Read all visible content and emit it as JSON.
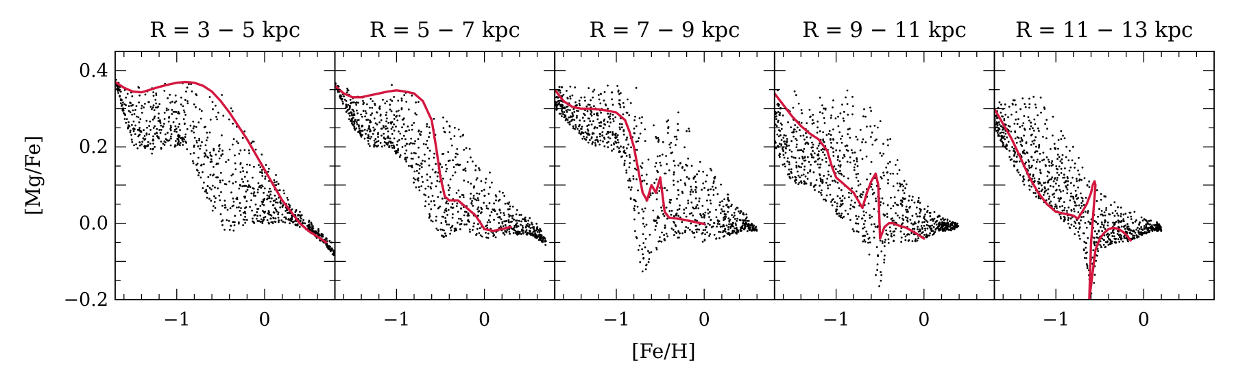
{
  "chart_data": {
    "type": "scatter",
    "xlabel": "[Fe/H]",
    "ylabel": "[Mg/Fe]",
    "xlim": [
      -1.7,
      0.8
    ],
    "ylim": [
      -0.2,
      0.45
    ],
    "x_ticks": [
      -1,
      0
    ],
    "x_tick_labels": [
      "−1",
      "0"
    ],
    "y_ticks": [
      -0.2,
      0.0,
      0.2,
      0.4
    ],
    "y_tick_labels": [
      "−0.2",
      "0.0",
      "0.2",
      "0.4"
    ],
    "panels": [
      {
        "title": "R = 3 − 5 kpc",
        "median_color": "#d3173f",
        "median_line": {
          "x": [
            -1.7,
            -1.6,
            -1.5,
            -1.4,
            -1.3,
            -1.2,
            -1.1,
            -1.0,
            -0.9,
            -0.8,
            -0.7,
            -0.6,
            -0.5,
            -0.4,
            -0.3,
            -0.2,
            -0.1,
            0.0,
            0.1,
            0.2,
            0.3,
            0.4,
            0.5,
            0.6,
            0.7
          ],
          "y": [
            0.37,
            0.355,
            0.345,
            0.343,
            0.35,
            0.357,
            0.363,
            0.368,
            0.37,
            0.368,
            0.36,
            0.345,
            0.32,
            0.29,
            0.255,
            0.22,
            0.18,
            0.14,
            0.1,
            0.06,
            0.03,
            0.0,
            -0.02,
            -0.035,
            -0.05
          ]
        },
        "scatter_envelope": {
          "x": [
            -1.7,
            -1.5,
            -1.3,
            -1.1,
            -0.9,
            -0.8,
            -0.7,
            -0.6,
            -0.5,
            -0.4,
            -0.3,
            -0.2,
            -0.1,
            0.0,
            0.1,
            0.2,
            0.3,
            0.4,
            0.5,
            0.6,
            0.7,
            0.8
          ],
          "y_max": [
            0.38,
            0.36,
            0.365,
            0.372,
            0.378,
            0.38,
            0.378,
            0.37,
            0.35,
            0.325,
            0.29,
            0.255,
            0.215,
            0.18,
            0.14,
            0.1,
            0.065,
            0.035,
            0.01,
            -0.01,
            -0.03,
            -0.06
          ],
          "y_min": [
            0.36,
            0.2,
            0.18,
            0.2,
            0.2,
            0.15,
            0.08,
            0.03,
            -0.01,
            -0.03,
            -0.02,
            0.0,
            0.0,
            -0.01,
            0.0,
            0.0,
            0.0,
            -0.01,
            -0.02,
            -0.04,
            -0.06,
            -0.09
          ]
        }
      },
      {
        "title": "R = 5 − 7 kpc",
        "median_color": "#d3173f",
        "median_line": {
          "x": [
            -1.7,
            -1.6,
            -1.5,
            -1.4,
            -1.3,
            -1.2,
            -1.1,
            -1.0,
            -0.9,
            -0.8,
            -0.7,
            -0.6,
            -0.55,
            -0.5,
            -0.45,
            -0.4,
            -0.3,
            -0.2,
            -0.1,
            0.0,
            0.1,
            0.2,
            0.3
          ],
          "y": [
            0.36,
            0.34,
            0.33,
            0.33,
            0.335,
            0.34,
            0.345,
            0.348,
            0.345,
            0.34,
            0.32,
            0.27,
            0.2,
            0.12,
            0.07,
            0.06,
            0.06,
            0.04,
            0.02,
            -0.015,
            -0.02,
            -0.015,
            -0.01
          ]
        },
        "scatter_envelope": {
          "x": [
            -1.7,
            -1.5,
            -1.3,
            -1.1,
            -1.0,
            -0.9,
            -0.8,
            -0.7,
            -0.6,
            -0.5,
            -0.4,
            -0.3,
            -0.2,
            -0.1,
            0.0,
            0.1,
            0.2,
            0.3,
            0.4,
            0.5,
            0.6,
            0.7
          ],
          "y_max": [
            0.37,
            0.35,
            0.36,
            0.37,
            0.375,
            0.375,
            0.37,
            0.36,
            0.345,
            0.32,
            0.29,
            0.26,
            0.23,
            0.2,
            0.16,
            0.13,
            0.1,
            0.07,
            0.04,
            0.02,
            0.0,
            -0.04
          ],
          "y_min": [
            0.36,
            0.25,
            0.2,
            0.2,
            0.18,
            0.15,
            0.1,
            0.05,
            0.0,
            -0.04,
            -0.03,
            -0.02,
            -0.02,
            -0.03,
            -0.04,
            -0.04,
            -0.03,
            -0.03,
            -0.03,
            -0.03,
            -0.04,
            -0.06
          ]
        }
      },
      {
        "title": "R = 7 − 9 kpc",
        "median_color": "#d3173f",
        "median_line": {
          "x": [
            -1.7,
            -1.6,
            -1.5,
            -1.4,
            -1.3,
            -1.2,
            -1.1,
            -1.0,
            -0.9,
            -0.85,
            -0.8,
            -0.75,
            -0.7,
            -0.65,
            -0.6,
            -0.55,
            -0.5,
            -0.45,
            -0.4,
            -0.3,
            -0.2,
            -0.1,
            0.0
          ],
          "y": [
            0.35,
            0.32,
            0.305,
            0.3,
            0.3,
            0.298,
            0.295,
            0.29,
            0.27,
            0.24,
            0.2,
            0.14,
            0.08,
            0.06,
            0.1,
            0.08,
            0.12,
            0.03,
            0.015,
            0.012,
            0.008,
            0.003,
            -0.002
          ]
        },
        "scatter_envelope": {
          "x": [
            -1.7,
            -1.5,
            -1.3,
            -1.1,
            -0.9,
            -0.7,
            -0.6,
            -0.5,
            -0.4,
            -0.3,
            -0.2,
            -0.1,
            0.0,
            0.1,
            0.2,
            0.3,
            0.4,
            0.5,
            0.6
          ],
          "y_max": [
            0.36,
            0.36,
            0.365,
            0.37,
            0.375,
            0.37,
            0.36,
            0.34,
            0.32,
            0.3,
            0.27,
            0.24,
            0.2,
            0.16,
            0.12,
            0.08,
            0.05,
            0.02,
            -0.01
          ],
          "y_min": [
            0.3,
            0.25,
            0.2,
            0.2,
            0.15,
            -0.15,
            -0.1,
            -0.05,
            -0.04,
            -0.04,
            -0.03,
            -0.04,
            -0.05,
            -0.05,
            -0.04,
            -0.03,
            -0.03,
            -0.02,
            -0.02
          ]
        }
      },
      {
        "title": "R = 9 − 11 kpc",
        "median_color": "#d3173f",
        "median_line": {
          "x": [
            -1.7,
            -1.6,
            -1.5,
            -1.4,
            -1.3,
            -1.2,
            -1.1,
            -1.05,
            -1.0,
            -0.9,
            -0.8,
            -0.75,
            -0.7,
            -0.65,
            -0.6,
            -0.55,
            -0.52,
            -0.5,
            -0.45,
            -0.4,
            -0.35,
            -0.3,
            -0.2,
            -0.1,
            0.0
          ],
          "y": [
            0.34,
            0.31,
            0.28,
            0.255,
            0.235,
            0.22,
            0.19,
            0.15,
            0.12,
            0.1,
            0.08,
            0.06,
            0.04,
            0.08,
            0.11,
            0.13,
            0.1,
            -0.04,
            -0.01,
            0.0,
            0.0,
            -0.005,
            -0.012,
            -0.025,
            -0.04
          ]
        },
        "scatter_envelope": {
          "x": [
            -1.7,
            -1.5,
            -1.3,
            -1.1,
            -0.9,
            -0.7,
            -0.55,
            -0.5,
            -0.4,
            -0.3,
            -0.2,
            -0.1,
            0.0,
            0.1,
            0.2,
            0.3,
            0.4
          ],
          "y_max": [
            0.37,
            0.36,
            0.35,
            0.36,
            0.37,
            0.35,
            0.32,
            0.3,
            0.25,
            0.2,
            0.15,
            0.1,
            0.06,
            0.04,
            0.02,
            0.01,
            0.0
          ],
          "y_min": [
            0.2,
            0.1,
            0.1,
            0.05,
            0.0,
            -0.05,
            -0.15,
            -0.17,
            -0.06,
            -0.05,
            -0.05,
            -0.05,
            -0.04,
            -0.03,
            -0.02,
            -0.02,
            -0.01
          ]
        }
      },
      {
        "title": "R = 11 − 13 kpc",
        "median_color": "#d3173f",
        "median_line": {
          "x": [
            -1.7,
            -1.6,
            -1.5,
            -1.4,
            -1.3,
            -1.2,
            -1.1,
            -1.0,
            -0.9,
            -0.8,
            -0.75,
            -0.7,
            -0.65,
            -0.6,
            -0.58,
            -0.56,
            -0.55,
            -0.6,
            -0.62,
            -0.55,
            -0.5,
            -0.45,
            -0.4,
            -0.35,
            -0.3,
            -0.25,
            -0.2,
            -0.15
          ],
          "y": [
            0.3,
            0.26,
            0.22,
            0.17,
            0.12,
            0.08,
            0.05,
            0.03,
            0.025,
            0.02,
            0.012,
            0.03,
            0.05,
            0.08,
            0.1,
            0.11,
            0.1,
            -0.05,
            -0.2,
            -0.07,
            -0.04,
            -0.025,
            -0.015,
            -0.012,
            -0.014,
            -0.02,
            -0.03,
            -0.045
          ]
        },
        "scatter_envelope": {
          "x": [
            -1.7,
            -1.5,
            -1.3,
            -1.1,
            -0.9,
            -0.7,
            -0.6,
            -0.5,
            -0.4,
            -0.3,
            -0.2,
            -0.1,
            0.0,
            0.1,
            0.2
          ],
          "y_max": [
            0.32,
            0.34,
            0.35,
            0.34,
            0.25,
            0.2,
            0.12,
            0.1,
            0.08,
            0.05,
            0.04,
            0.03,
            0.02,
            0.01,
            0.0
          ],
          "y_min": [
            0.25,
            0.15,
            0.08,
            0.05,
            0.0,
            -0.05,
            -0.2,
            -0.07,
            -0.06,
            -0.05,
            -0.05,
            -0.04,
            -0.03,
            -0.02,
            -0.02
          ]
        }
      }
    ]
  }
}
